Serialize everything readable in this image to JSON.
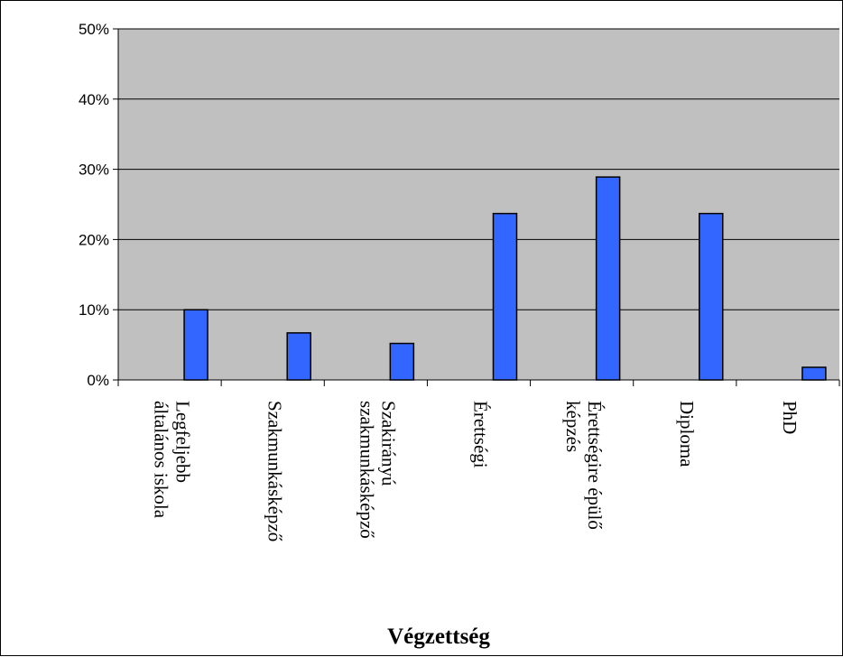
{
  "chart_data": {
    "type": "bar",
    "categories": [
      [
        "Legfeljebb",
        "általános iskola"
      ],
      [
        "Szakmunkásképző"
      ],
      [
        "Szakirányú",
        "szakmunkásképző"
      ],
      [
        "Érettségi"
      ],
      [
        "Érettségire épülő",
        "képzés"
      ],
      [
        "Diploma"
      ],
      [
        "PhD"
      ]
    ],
    "values": [
      10,
      6.7,
      5.2,
      23.7,
      28.9,
      23.7,
      1.8
    ],
    "xlabel": "Végzettség",
    "ylabel": "",
    "ylim": [
      0,
      50
    ],
    "yticks": [
      "0%",
      "10%",
      "20%",
      "30%",
      "40%",
      "50%"
    ],
    "grid": true,
    "colors": {
      "bar": "#3366ff",
      "plot_background": "#c0c0c0",
      "grid": "#000000"
    }
  }
}
